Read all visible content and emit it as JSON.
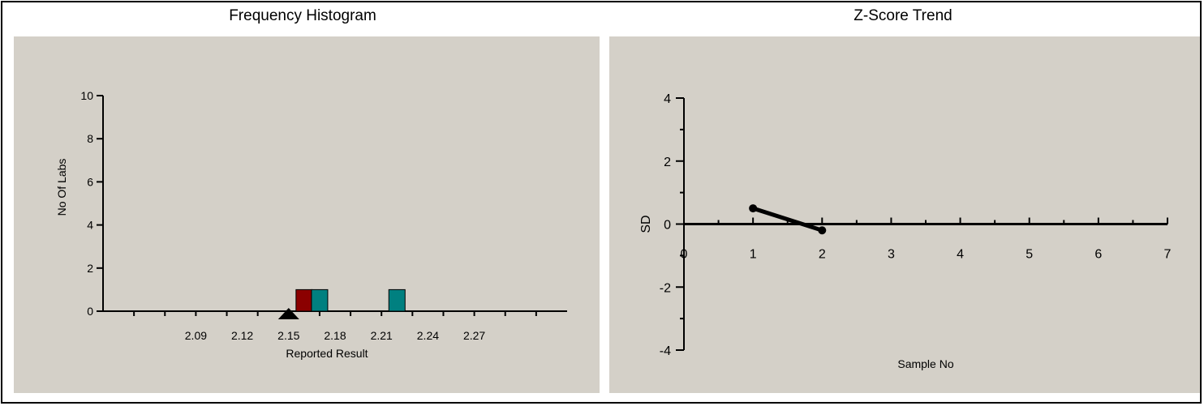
{
  "panels": {
    "histogram_title": "Frequency Histogram",
    "trend_title": "Z-Score Trend"
  },
  "colors": {
    "panel_bg": "#d4d0c8",
    "bar_highlight": "#8b0000",
    "bar_normal": "#008080",
    "axis": "#000000"
  },
  "chart_data": [
    {
      "type": "bar",
      "title": "Frequency Histogram",
      "xlabel": "Reported Result",
      "ylabel": "No Of Labs",
      "ylim": [
        0,
        10
      ],
      "y_ticks": [
        0,
        2,
        4,
        6,
        8,
        10
      ],
      "x_range": [
        2.03,
        2.33
      ],
      "x_tick_labels": [
        "2.09",
        "2.12",
        "2.15",
        "2.18",
        "2.21",
        "2.24",
        "2.27"
      ],
      "x_tick_values": [
        2.09,
        2.12,
        2.15,
        2.18,
        2.21,
        2.24,
        2.27
      ],
      "bars": [
        {
          "x": 2.16,
          "value": 1,
          "highlight": true
        },
        {
          "x": 2.17,
          "value": 1,
          "highlight": false
        },
        {
          "x": 2.22,
          "value": 1,
          "highlight": false
        }
      ],
      "marker": {
        "x": 2.15,
        "shape": "triangle"
      },
      "grid": false
    },
    {
      "type": "line",
      "title": "Z-Score Trend",
      "xlabel": "Sample No",
      "ylabel": "SD",
      "xlim": [
        0,
        7
      ],
      "ylim": [
        -4,
        4
      ],
      "x_ticks": [
        0,
        1,
        2,
        3,
        4,
        5,
        6,
        7
      ],
      "y_ticks": [
        -4,
        -2,
        0,
        2,
        4
      ],
      "series": [
        {
          "x": [
            1,
            2
          ],
          "y": [
            0.5,
            -0.2
          ]
        }
      ],
      "grid": false
    }
  ]
}
